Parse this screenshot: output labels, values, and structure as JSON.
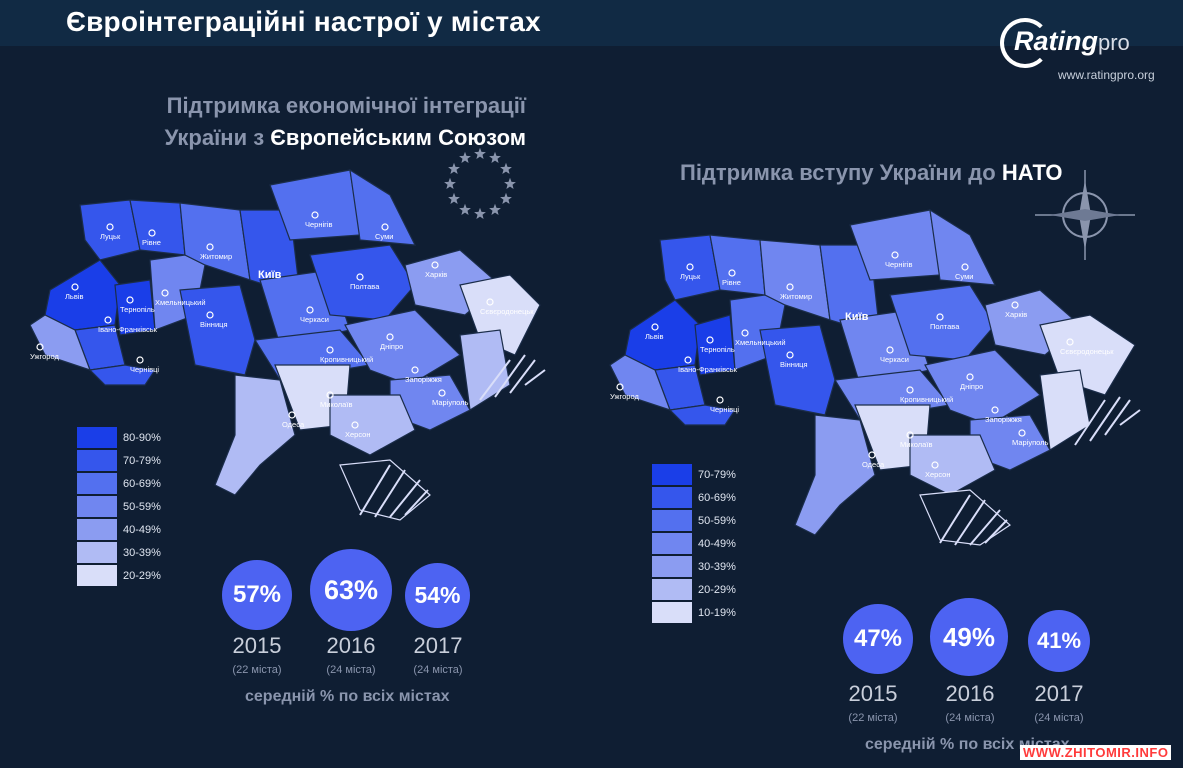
{
  "title": "Євроінтеграційні настрої у містах",
  "logo": {
    "brand": "Rating",
    "pro": "pro",
    "url": "www.ratingpro.org"
  },
  "eu_panel": {
    "subtitle_line1": "Підтримка економічної інтеграції",
    "subtitle_line2_plain": "України з ",
    "subtitle_line2_bold": "Європейським Союзом",
    "kyiv_label": "Київ",
    "cities": [
      "Луцьк",
      "Рівне",
      "Житомир",
      "Чернігів",
      "Суми",
      "Харків",
      "Львів",
      "Тернопіль",
      "Хмельницький",
      "Вінниця",
      "Черкаси",
      "Полтава",
      "Дніпро",
      "Запоріжжя",
      "Маріуполь",
      "Кропивницький",
      "Миколаїв",
      "Одеса",
      "Херсон",
      "Ужгород",
      "Івано-Франківськ",
      "Чернівці",
      "Сєвєродонецьк"
    ],
    "legend": [
      {
        "label": "80-90%",
        "color": "#1a3ee8"
      },
      {
        "label": "70-79%",
        "color": "#3556ec"
      },
      {
        "label": "60-69%",
        "color": "#5370ef"
      },
      {
        "label": "50-59%",
        "color": "#7086f0"
      },
      {
        "label": "40-49%",
        "color": "#8b9cf1"
      },
      {
        "label": "30-39%",
        "color": "#b0bbf4"
      },
      {
        "label": "20-29%",
        "color": "#d9def9"
      }
    ],
    "years": [
      {
        "pct": "57%",
        "year": "2015",
        "cities": "(22 міста)"
      },
      {
        "pct": "63%",
        "year": "2016",
        "cities": "(24 міста)"
      },
      {
        "pct": "54%",
        "year": "2017",
        "cities": "(24 міста)"
      }
    ],
    "avg_label": "середній % по всіх містах"
  },
  "nato_panel": {
    "subtitle_plain": "Підтримка вступу України до ",
    "subtitle_bold": "НАТО",
    "kyiv_label": "Київ",
    "cities": [
      "Луцьк",
      "Рівне",
      "Житомир",
      "Чернігів",
      "Суми",
      "Харків",
      "Львів",
      "Тернопіль",
      "Хмельницький",
      "Вінниця",
      "Черкаси",
      "Полтава",
      "Дніпро",
      "Запоріжжя",
      "Маріуполь",
      "Кропивницький",
      "Миколаїв",
      "Одеса",
      "Херсон",
      "Ужгород",
      "Івано-Франківськ",
      "Чернівці",
      "Сєвєродонецьк"
    ],
    "legend": [
      {
        "label": "70-79%",
        "color": "#1a3ee8"
      },
      {
        "label": "60-69%",
        "color": "#3556ec"
      },
      {
        "label": "50-59%",
        "color": "#5370ef"
      },
      {
        "label": "40-49%",
        "color": "#7086f0"
      },
      {
        "label": "30-39%",
        "color": "#8b9cf1"
      },
      {
        "label": "20-29%",
        "color": "#b0bbf4"
      },
      {
        "label": "10-19%",
        "color": "#d9def9"
      }
    ],
    "years": [
      {
        "pct": "47%",
        "year": "2015",
        "cities": "(22 міста)"
      },
      {
        "pct": "49%",
        "year": "2016",
        "cities": "(24 міста)"
      },
      {
        "pct": "41%",
        "year": "2017",
        "cities": "(24 міста)"
      }
    ],
    "avg_label": "середній % по всіх містах"
  },
  "watermark": "WWW.ZHITOMIR.INFO"
}
